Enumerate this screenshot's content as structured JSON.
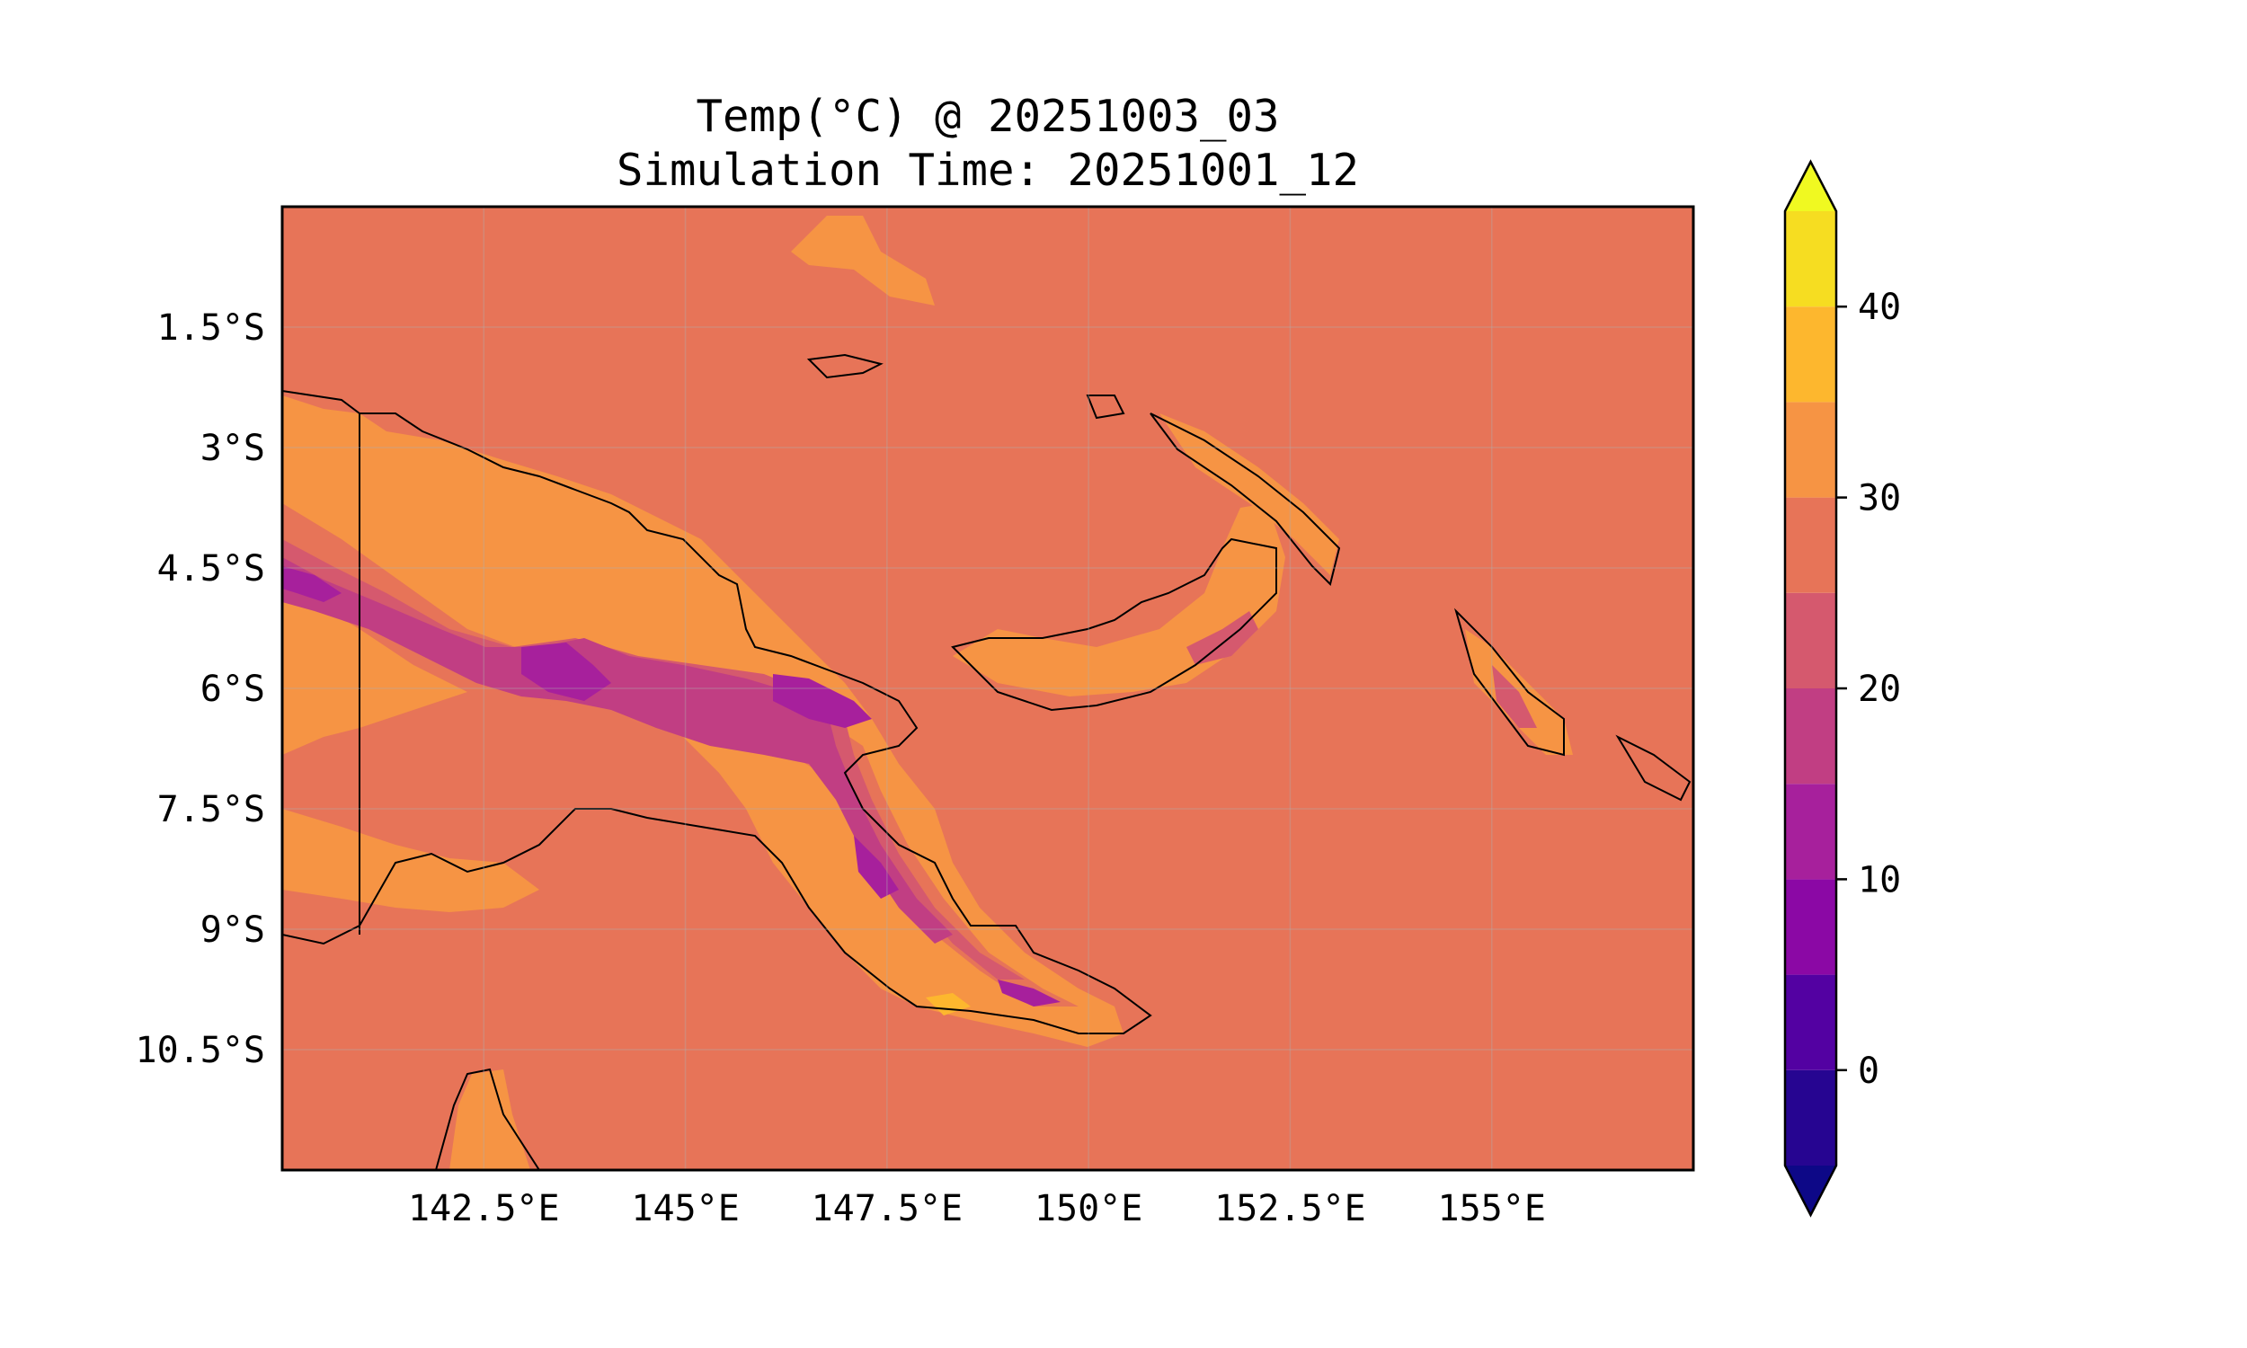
{
  "title": {
    "line1": "Temp(°C) @ 20251003_03",
    "line2": "Simulation Time: 20251001_12"
  },
  "chart_data": {
    "type": "heatmap",
    "variable": "Temp(°C)",
    "lon_range": [
      140,
      157.5
    ],
    "lat_range": [
      -12,
      0
    ],
    "x_ticks": [
      {
        "value": 142.5,
        "label": "142.5°E"
      },
      {
        "value": 145,
        "label": "145°E"
      },
      {
        "value": 147.5,
        "label": "147.5°E"
      },
      {
        "value": 150,
        "label": "150°E"
      },
      {
        "value": 152.5,
        "label": "152.5°E"
      },
      {
        "value": 155,
        "label": "155°E"
      }
    ],
    "y_ticks": [
      {
        "value": -1.5,
        "label": "1.5°S"
      },
      {
        "value": -3,
        "label": "3°S"
      },
      {
        "value": -4.5,
        "label": "4.5°S"
      },
      {
        "value": -6,
        "label": "6°S"
      },
      {
        "value": -7.5,
        "label": "7.5°S"
      },
      {
        "value": -9,
        "label": "9°S"
      },
      {
        "value": -10.5,
        "label": "10.5°S"
      }
    ],
    "colorbar": {
      "range": [
        -5,
        45
      ],
      "extend": "both",
      "levels": [
        -5,
        0,
        5,
        10,
        15,
        20,
        25,
        30,
        35,
        40,
        45
      ],
      "colors": [
        "#260591",
        "#5301a2",
        "#8b08a5",
        "#a7209c",
        "#c13e83",
        "#d5596e",
        "#e77458",
        "#f69444",
        "#fdb72e",
        "#f6dd21"
      ],
      "under_color": "#0d0887",
      "over_color": "#f0f921",
      "ticks": [
        {
          "value": 0,
          "label": "0"
        },
        {
          "value": 10,
          "label": "10"
        },
        {
          "value": 20,
          "label": "20"
        },
        {
          "value": 30,
          "label": "30"
        },
        {
          "value": 40,
          "label": "40"
        }
      ]
    },
    "background_value_range": [
      25,
      30
    ],
    "grid": true
  }
}
